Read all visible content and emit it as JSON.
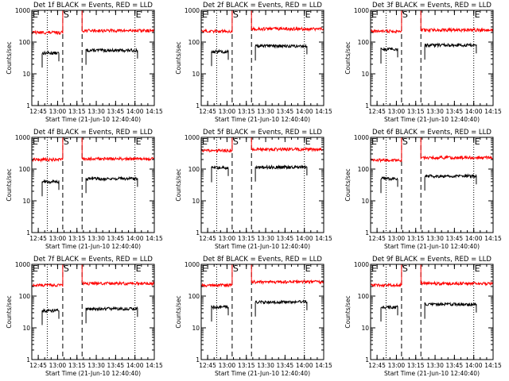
{
  "figure": {
    "background": "#ffffff",
    "events_color": "#000000",
    "lld_color": "#ff0000"
  },
  "chart_data": [
    {
      "type": "line",
      "title": "Det 1f BLACK = Events, RED = LLD",
      "xlabel": "Start Time (21-Jun-10 12:40:40)",
      "ylabel": "Counts/sec",
      "yscale": "log",
      "ylim": [
        1,
        1000
      ],
      "ytick_labels": [
        "1",
        "10",
        "100",
        "1000"
      ],
      "x_tick_labels": [
        "12:45",
        "13:00",
        "13:15",
        "13:30",
        "13:45",
        "14:00",
        "14:15"
      ],
      "x_range_minutes": [
        0,
        95
      ],
      "series": [
        {
          "name": "Events",
          "color": "#000000",
          "segments": [
            {
              "x_start": 8,
              "x_end": 21,
              "level": 45
            },
            {
              "x_start": 42,
              "x_end": 82,
              "level": 55
            }
          ]
        },
        {
          "name": "LLD",
          "color": "#ff0000",
          "segments": [
            {
              "x_start": 0,
              "x_end": 24,
              "level": 200
            },
            {
              "x_start": 39,
              "x_end": 95,
              "level": 230
            }
          ]
        }
      ],
      "markers": [
        {
          "label": "E",
          "x": 0,
          "style": "dotted"
        },
        {
          "label": "S",
          "x": 24,
          "style": "dashed"
        },
        {
          "label": "",
          "x": 39,
          "style": "dashed"
        },
        {
          "label": "E",
          "x": 80,
          "style": "dotted"
        }
      ],
      "extra_dotted_x": [
        12
      ]
    },
    {
      "type": "line",
      "title": "Det 2f BLACK = Events, RED = LLD",
      "xlabel": "Start Time (21-Jun-10 12:40:40)",
      "ylabel": "Counts/sec",
      "yscale": "log",
      "ylim": [
        1,
        1000
      ],
      "ytick_labels": [
        "1",
        "10",
        "100",
        "1000"
      ],
      "x_tick_labels": [
        "12:45",
        "13:00",
        "13:15",
        "13:30",
        "13:45",
        "14:00",
        "14:15"
      ],
      "x_range_minutes": [
        0,
        95
      ],
      "series": [
        {
          "name": "Events",
          "color": "#000000",
          "segments": [
            {
              "x_start": 8,
              "x_end": 21,
              "level": 50
            },
            {
              "x_start": 42,
              "x_end": 82,
              "level": 75
            }
          ]
        },
        {
          "name": "LLD",
          "color": "#ff0000",
          "segments": [
            {
              "x_start": 0,
              "x_end": 24,
              "level": 220
            },
            {
              "x_start": 39,
              "x_end": 95,
              "level": 260
            }
          ]
        }
      ],
      "markers": [
        {
          "label": "E",
          "x": 0,
          "style": "dotted"
        },
        {
          "label": "S",
          "x": 24,
          "style": "dashed"
        },
        {
          "label": "",
          "x": 39,
          "style": "dashed"
        },
        {
          "label": "E",
          "x": 80,
          "style": "dotted"
        }
      ],
      "extra_dotted_x": [
        12
      ]
    },
    {
      "type": "line",
      "title": "Det 3f BLACK = Events, RED = LLD",
      "xlabel": "Start Time (21-Jun-10 12:40:40)",
      "ylabel": "Counts/sec",
      "yscale": "log",
      "ylim": [
        1,
        1000
      ],
      "ytick_labels": [
        "1",
        "10",
        "100",
        "1000"
      ],
      "x_tick_labels": [
        "12:45",
        "13:00",
        "13:15",
        "13:30",
        "13:45",
        "14:00",
        "14:15"
      ],
      "x_range_minutes": [
        0,
        95
      ],
      "series": [
        {
          "name": "Events",
          "color": "#000000",
          "segments": [
            {
              "x_start": 8,
              "x_end": 21,
              "level": 60
            },
            {
              "x_start": 42,
              "x_end": 82,
              "level": 80
            }
          ]
        },
        {
          "name": "LLD",
          "color": "#ff0000",
          "segments": [
            {
              "x_start": 0,
              "x_end": 24,
              "level": 220
            },
            {
              "x_start": 39,
              "x_end": 95,
              "level": 240
            }
          ]
        }
      ],
      "markers": [
        {
          "label": "E",
          "x": 0,
          "style": "dotted"
        },
        {
          "label": "S",
          "x": 24,
          "style": "dashed"
        },
        {
          "label": "",
          "x": 39,
          "style": "dashed"
        },
        {
          "label": "E",
          "x": 80,
          "style": "dotted"
        }
      ],
      "extra_dotted_x": [
        12
      ]
    },
    {
      "type": "line",
      "title": "Det 4f BLACK = Events, RED = LLD",
      "xlabel": "Start Time (21-Jun-10 12:40:40)",
      "ylabel": "Counts/sec",
      "yscale": "log",
      "ylim": [
        1,
        1000
      ],
      "ytick_labels": [
        "1",
        "10",
        "100",
        "1000"
      ],
      "x_tick_labels": [
        "12:45",
        "13:00",
        "13:15",
        "13:30",
        "13:45",
        "14:00",
        "14:15"
      ],
      "x_range_minutes": [
        0,
        95
      ],
      "series": [
        {
          "name": "Events",
          "color": "#000000",
          "segments": [
            {
              "x_start": 8,
              "x_end": 21,
              "level": 40
            },
            {
              "x_start": 42,
              "x_end": 82,
              "level": 50
            }
          ]
        },
        {
          "name": "LLD",
          "color": "#ff0000",
          "segments": [
            {
              "x_start": 0,
              "x_end": 24,
              "level": 200
            },
            {
              "x_start": 39,
              "x_end": 95,
              "level": 210
            }
          ]
        }
      ],
      "markers": [
        {
          "label": "E",
          "x": 0,
          "style": "dotted"
        },
        {
          "label": "S",
          "x": 24,
          "style": "dashed"
        },
        {
          "label": "",
          "x": 39,
          "style": "dashed"
        },
        {
          "label": "E",
          "x": 80,
          "style": "dotted"
        }
      ],
      "extra_dotted_x": [
        12
      ]
    },
    {
      "type": "line",
      "title": "Det 5f BLACK = Events, RED = LLD",
      "xlabel": "Start Time (21-Jun-10 12:40:40)",
      "ylabel": "Counts/sec",
      "yscale": "log",
      "ylim": [
        1,
        1000
      ],
      "ytick_labels": [
        "1",
        "10",
        "100",
        "1000"
      ],
      "x_tick_labels": [
        "12:45",
        "13:00",
        "13:15",
        "13:30",
        "13:45",
        "14:00",
        "14:15"
      ],
      "x_range_minutes": [
        0,
        95
      ],
      "series": [
        {
          "name": "Events",
          "color": "#000000",
          "segments": [
            {
              "x_start": 8,
              "x_end": 21,
              "level": 110
            },
            {
              "x_start": 42,
              "x_end": 82,
              "level": 115
            }
          ]
        },
        {
          "name": "LLD",
          "color": "#ff0000",
          "segments": [
            {
              "x_start": 0,
              "x_end": 24,
              "level": 380
            },
            {
              "x_start": 39,
              "x_end": 95,
              "level": 420
            }
          ]
        }
      ],
      "markers": [
        {
          "label": "E",
          "x": 0,
          "style": "dotted"
        },
        {
          "label": "S",
          "x": 24,
          "style": "dashed"
        },
        {
          "label": "",
          "x": 39,
          "style": "dashed"
        },
        {
          "label": "E",
          "x": 80,
          "style": "dotted"
        }
      ],
      "extra_dotted_x": [
        12
      ]
    },
    {
      "type": "line",
      "title": "Det 6f BLACK = Events, RED = LLD",
      "xlabel": "Start Time (21-Jun-10 12:40:40)",
      "ylabel": "Counts/sec",
      "yscale": "log",
      "ylim": [
        1,
        1000
      ],
      "ytick_labels": [
        "1",
        "10",
        "100",
        "1000"
      ],
      "x_tick_labels": [
        "12:45",
        "13:00",
        "13:15",
        "13:30",
        "13:45",
        "14:00",
        "14:15"
      ],
      "x_range_minutes": [
        0,
        95
      ],
      "series": [
        {
          "name": "Events",
          "color": "#000000",
          "segments": [
            {
              "x_start": 8,
              "x_end": 21,
              "level": 50
            },
            {
              "x_start": 42,
              "x_end": 82,
              "level": 60
            }
          ]
        },
        {
          "name": "LLD",
          "color": "#ff0000",
          "segments": [
            {
              "x_start": 0,
              "x_end": 24,
              "level": 190
            },
            {
              "x_start": 39,
              "x_end": 95,
              "level": 230
            }
          ]
        }
      ],
      "markers": [
        {
          "label": "E",
          "x": 0,
          "style": "dotted"
        },
        {
          "label": "S",
          "x": 24,
          "style": "dashed"
        },
        {
          "label": "",
          "x": 39,
          "style": "dashed"
        },
        {
          "label": "E",
          "x": 80,
          "style": "dotted"
        }
      ],
      "extra_dotted_x": [
        12
      ]
    },
    {
      "type": "line",
      "title": "Det 7f BLACK = Events, RED = LLD",
      "xlabel": "Start Time (21-Jun-10 12:40:40)",
      "ylabel": "Counts/sec",
      "yscale": "log",
      "ylim": [
        1,
        1000
      ],
      "ytick_labels": [
        "1",
        "10",
        "100",
        "1000"
      ],
      "x_tick_labels": [
        "12:45",
        "13:00",
        "13:15",
        "13:30",
        "13:45",
        "14:00",
        "14:15"
      ],
      "x_range_minutes": [
        0,
        95
      ],
      "series": [
        {
          "name": "Events",
          "color": "#000000",
          "segments": [
            {
              "x_start": 8,
              "x_end": 21,
              "level": 35
            },
            {
              "x_start": 42,
              "x_end": 82,
              "level": 40
            }
          ]
        },
        {
          "name": "LLD",
          "color": "#ff0000",
          "segments": [
            {
              "x_start": 0,
              "x_end": 24,
              "level": 220
            },
            {
              "x_start": 39,
              "x_end": 95,
              "level": 250
            }
          ]
        }
      ],
      "markers": [
        {
          "label": "E",
          "x": 0,
          "style": "dotted"
        },
        {
          "label": "S",
          "x": 24,
          "style": "dashed"
        },
        {
          "label": "",
          "x": 39,
          "style": "dashed"
        },
        {
          "label": "E",
          "x": 80,
          "style": "dotted"
        }
      ],
      "extra_dotted_x": [
        12
      ]
    },
    {
      "type": "line",
      "title": "Det 8f BLACK = Events, RED = LLD",
      "xlabel": "Start Time (21-Jun-10 12:40:40)",
      "ylabel": "Counts/sec",
      "yscale": "log",
      "ylim": [
        1,
        1000
      ],
      "ytick_labels": [
        "1",
        "10",
        "100",
        "1000"
      ],
      "x_tick_labels": [
        "12:45",
        "13:00",
        "13:15",
        "13:30",
        "13:45",
        "14:00",
        "14:15"
      ],
      "x_range_minutes": [
        0,
        95
      ],
      "series": [
        {
          "name": "Events",
          "color": "#000000",
          "segments": [
            {
              "x_start": 8,
              "x_end": 21,
              "level": 45
            },
            {
              "x_start": 42,
              "x_end": 82,
              "level": 65
            }
          ]
        },
        {
          "name": "LLD",
          "color": "#ff0000",
          "segments": [
            {
              "x_start": 0,
              "x_end": 24,
              "level": 220
            },
            {
              "x_start": 39,
              "x_end": 95,
              "level": 280
            }
          ]
        }
      ],
      "markers": [
        {
          "label": "E",
          "x": 0,
          "style": "dotted"
        },
        {
          "label": "S",
          "x": 24,
          "style": "dashed"
        },
        {
          "label": "",
          "x": 39,
          "style": "dashed"
        },
        {
          "label": "E",
          "x": 80,
          "style": "dotted"
        }
      ],
      "extra_dotted_x": [
        12
      ]
    },
    {
      "type": "line",
      "title": "Det 9f BLACK = Events, RED = LLD",
      "xlabel": "Start Time (21-Jun-10 12:40:40)",
      "ylabel": "Counts/sec",
      "yscale": "log",
      "ylim": [
        1,
        1000
      ],
      "ytick_labels": [
        "1",
        "10",
        "100",
        "1000"
      ],
      "x_tick_labels": [
        "12:45",
        "13:00",
        "13:15",
        "13:30",
        "13:45",
        "14:00",
        "14:15"
      ],
      "x_range_minutes": [
        0,
        95
      ],
      "series": [
        {
          "name": "Events",
          "color": "#000000",
          "segments": [
            {
              "x_start": 8,
              "x_end": 21,
              "level": 45
            },
            {
              "x_start": 42,
              "x_end": 82,
              "level": 55
            }
          ]
        },
        {
          "name": "LLD",
          "color": "#ff0000",
          "segments": [
            {
              "x_start": 0,
              "x_end": 24,
              "level": 220
            },
            {
              "x_start": 39,
              "x_end": 95,
              "level": 250
            }
          ]
        }
      ],
      "markers": [
        {
          "label": "E",
          "x": 0,
          "style": "dotted"
        },
        {
          "label": "S",
          "x": 24,
          "style": "dashed"
        },
        {
          "label": "",
          "x": 39,
          "style": "dashed"
        },
        {
          "label": "E",
          "x": 80,
          "style": "dotted"
        }
      ],
      "extra_dotted_x": [
        12
      ]
    }
  ]
}
